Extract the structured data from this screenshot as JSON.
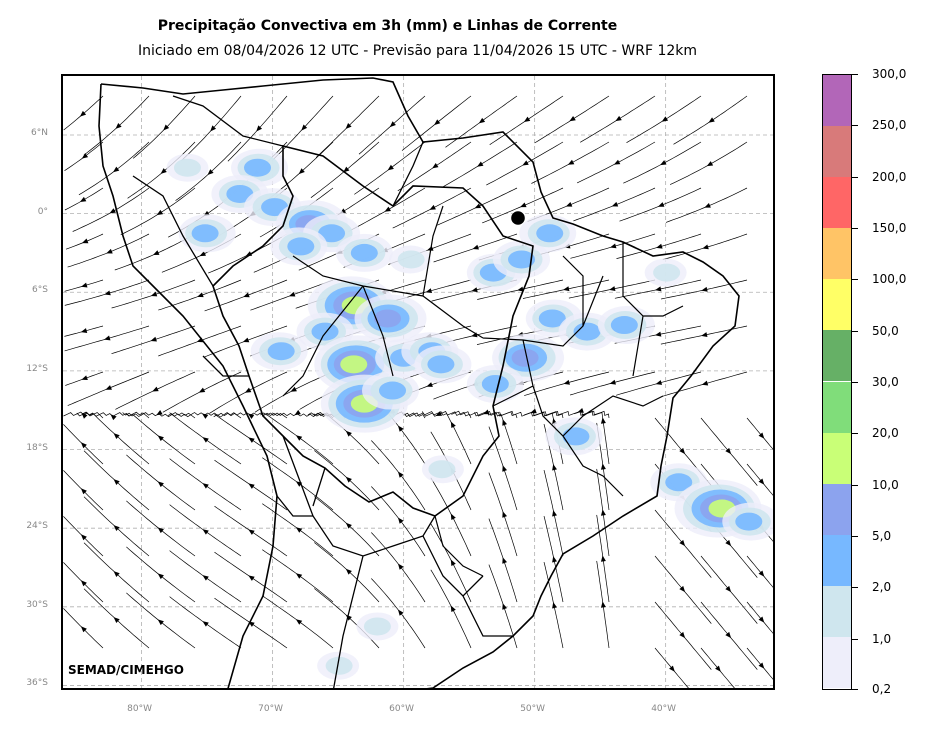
{
  "title": "Precipitação Convectiva em 3h (mm) e Linhas de Corrente",
  "subtitle": "Iniciado em 08/04/2026 12 UTC - Previsão para 11/04/2026 15 UTC - WRF 12km",
  "credit": "SEMAD/CIMEHGO",
  "lat_labels": [
    "6°N",
    "0°",
    "6°S",
    "12°S",
    "18°S",
    "24°S",
    "30°S",
    "36°S"
  ],
  "lon_labels": [
    "80°W",
    "70°W",
    "60°W",
    "50°W",
    "40°W"
  ],
  "colorbar": {
    "labels": [
      "0,2",
      "1,0",
      "2,0",
      "5,0",
      "10,0",
      "20,0",
      "30,0",
      "50,0",
      "100,0",
      "150,0",
      "200,0",
      "250,0",
      "300,0"
    ],
    "colors": [
      "#eeeefa",
      "#cfe6ee",
      "#77b8ff",
      "#8ca3ee",
      "#c9ff77",
      "#80dd7a",
      "#66b066",
      "#ffff66",
      "#ffc466",
      "#ff6666",
      "#d87a7a",
      "#b266b8"
    ]
  },
  "map": {
    "extent_lon": [
      -86,
      -31.5
    ],
    "extent_lat": [
      -36.5,
      10.5
    ],
    "grid_lons": [
      -80,
      -70,
      -60,
      -50,
      -40
    ],
    "grid_lats": [
      6,
      0,
      -6,
      -12,
      -18,
      -24,
      -30,
      -36
    ],
    "precip_cells": [
      {
        "lon": -71,
        "lat": 3.5,
        "level": 2
      },
      {
        "lon": -72.5,
        "lat": 1.5,
        "level": 2
      },
      {
        "lon": -70,
        "lat": 0.5,
        "level": 2
      },
      {
        "lon": -67,
        "lat": -0.8,
        "level": 3
      },
      {
        "lon": -65.5,
        "lat": -1.5,
        "level": 2
      },
      {
        "lon": -68,
        "lat": -2.5,
        "level": 2
      },
      {
        "lon": -75,
        "lat": -1.5,
        "level": 2
      },
      {
        "lon": -63,
        "lat": -3,
        "level": 2
      },
      {
        "lon": -59.5,
        "lat": -3.5,
        "level": 1
      },
      {
        "lon": -53,
        "lat": -4.5,
        "level": 2
      },
      {
        "lon": -51,
        "lat": -3.5,
        "level": 2
      },
      {
        "lon": -49,
        "lat": -1.5,
        "level": 2
      },
      {
        "lon": -48.5,
        "lat": -8,
        "level": 2
      },
      {
        "lon": -46,
        "lat": -9,
        "level": 2
      },
      {
        "lon": -64,
        "lat": -7,
        "level": 4
      },
      {
        "lon": -61,
        "lat": -8,
        "level": 3
      },
      {
        "lon": -66,
        "lat": -9,
        "level": 2
      },
      {
        "lon": -69.5,
        "lat": -10.5,
        "level": 2
      },
      {
        "lon": -63.5,
        "lat": -11.5,
        "level": 4
      },
      {
        "lon": -60,
        "lat": -11,
        "level": 2
      },
      {
        "lon": -58,
        "lat": -10.5,
        "level": 2
      },
      {
        "lon": -57,
        "lat": -11.5,
        "level": 2
      },
      {
        "lon": -63,
        "lat": -14.5,
        "level": 4
      },
      {
        "lon": -61,
        "lat": -13.5,
        "level": 2
      },
      {
        "lon": -50.5,
        "lat": -11,
        "level": 3
      },
      {
        "lon": -53,
        "lat": -13,
        "level": 2
      },
      {
        "lon": -47,
        "lat": -17,
        "level": 2
      },
      {
        "lon": -43,
        "lat": -8.5,
        "level": 2
      },
      {
        "lon": -39,
        "lat": -20.5,
        "level": 2
      },
      {
        "lon": -36,
        "lat": -22.5,
        "level": 4
      },
      {
        "lon": -33.5,
        "lat": -23.5,
        "level": 2
      },
      {
        "lon": -62,
        "lat": -31.5,
        "level": 1
      },
      {
        "lon": -65,
        "lat": -34.5,
        "level": 1
      },
      {
        "lon": -57,
        "lat": -19.5,
        "level": 1
      },
      {
        "lon": -76.5,
        "lat": 3.5,
        "level": 1
      },
      {
        "lon": -40,
        "lat": -4.5,
        "level": 1
      }
    ]
  }
}
